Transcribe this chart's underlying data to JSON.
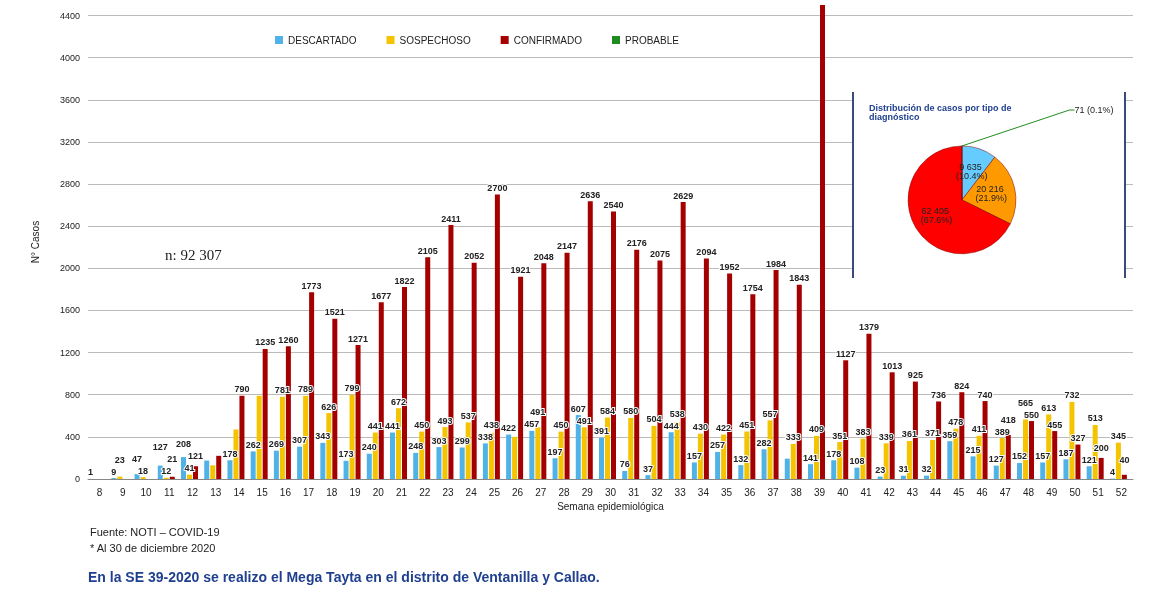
{
  "chart_data": [
    {
      "type": "bar",
      "xlabel": "Semana epidemiológica",
      "ylabel": "N° Casos",
      "categories": [
        "8",
        "9",
        "10",
        "11",
        "12",
        "13",
        "14",
        "15",
        "16",
        "17",
        "18",
        "19",
        "20",
        "21",
        "22",
        "23",
        "24",
        "25",
        "26",
        "27",
        "28",
        "29",
        "30",
        "31",
        "32",
        "33",
        "34",
        "35",
        "36",
        "37",
        "38",
        "39",
        "40",
        "41",
        "42",
        "43",
        "44",
        "45",
        "46",
        "47",
        "48",
        "49",
        "50",
        "51",
        "52"
      ],
      "series": [
        {
          "name": "DESCARTADO",
          "color": "#4fb3e8",
          "values": [
            1,
            9,
            47,
            127,
            208,
            175,
            178,
            262,
            269,
            307,
            343,
            173,
            240,
            441,
            248,
            303,
            299,
            338,
            422,
            457,
            197,
            607,
            391,
            76,
            37,
            444,
            157,
            257,
            132,
            282,
            193,
            141,
            178,
            108,
            23,
            31,
            32,
            359,
            215,
            127,
            152,
            157,
            187,
            121,
            4
          ],
          "value_labels": [
            "1",
            "9",
            "47",
            "127",
            "208",
            null,
            "178",
            "262",
            "269",
            "307",
            "343",
            "173",
            "240",
            "441",
            "248",
            "303",
            "299",
            "338",
            "422",
            "457",
            "197",
            "607",
            "391",
            "76",
            "37",
            "444",
            "157",
            "257",
            "132",
            "282",
            null,
            "141",
            "178",
            "108",
            "23",
            "31",
            "32",
            "359",
            "215",
            "127",
            "152",
            "157",
            "187",
            "121",
            "4"
          ]
        },
        {
          "name": "SOSPECHOSO",
          "color": "#f5c400",
          "values": [
            null,
            23,
            18,
            12,
            41,
            130,
            470,
            790,
            781,
            789,
            626,
            799,
            441,
            672,
            450,
            493,
            537,
            438,
            400,
            491,
            450,
            491,
            584,
            580,
            504,
            538,
            430,
            422,
            451,
            557,
            333,
            409,
            351,
            383,
            339,
            361,
            371,
            478,
            411,
            389,
            565,
            613,
            732,
            513,
            345
          ],
          "value_labels": [
            null,
            "23",
            "18",
            "12",
            "41",
            null,
            null,
            null,
            "781",
            "789",
            "626",
            "799",
            "441",
            "672",
            "450",
            "493",
            "537",
            "438",
            null,
            "491",
            "450",
            "491",
            "584",
            "580",
            "504",
            "538",
            "430",
            "422",
            "451",
            "557",
            "333",
            "409",
            "351",
            "383",
            "339",
            "361",
            "371",
            "478",
            "411",
            "389",
            "565",
            "613",
            "732",
            "513",
            "345"
          ]
        },
        {
          "name": "CONFIRMADO",
          "color": "#a50000",
          "values": [
            null,
            null,
            null,
            21,
            121,
            220,
            790,
            1235,
            1260,
            1773,
            1521,
            1271,
            1677,
            1822,
            2105,
            2411,
            2052,
            2700,
            1921,
            2048,
            2147,
            2636,
            2540,
            2176,
            2075,
            2629,
            2094,
            1952,
            1754,
            1984,
            1843,
            4500,
            1127,
            1379,
            1013,
            925,
            736,
            824,
            740,
            418,
            550,
            455,
            327,
            200,
            40
          ],
          "value_labels": [
            null,
            null,
            null,
            "21",
            "121",
            null,
            "790",
            "1235",
            "1260",
            "1773",
            "1521",
            "1271",
            "1677",
            "1822",
            "2105",
            "2411",
            "2052",
            "2700",
            "1921",
            "2048",
            "2147",
            "2636",
            "2540",
            "2176",
            "2075",
            "2629",
            "2094",
            "1952",
            "1754",
            "1984",
            "1843",
            null,
            "1127",
            "1379",
            "1013",
            "925",
            "736",
            "824",
            "740",
            "418",
            "550",
            "455",
            "327",
            "200",
            "40"
          ]
        },
        {
          "name": "PROBABLE",
          "color": "#1e8c1e",
          "values": [
            null,
            null,
            null,
            null,
            null,
            null,
            null,
            null,
            null,
            null,
            null,
            null,
            null,
            null,
            null,
            null,
            null,
            null,
            null,
            null,
            null,
            null,
            null,
            null,
            null,
            null,
            null,
            null,
            null,
            null,
            null,
            null,
            null,
            null,
            null,
            null,
            null,
            null,
            null,
            null,
            null,
            null,
            null,
            null,
            null
          ]
        }
      ],
      "ylim": [
        0,
        4500
      ],
      "yticks": [
        0,
        400,
        800,
        1200,
        1600,
        2000,
        2400,
        2800,
        3200,
        3600,
        4000,
        4400
      ],
      "grid": "y",
      "legend": "top",
      "annotations": [
        "n: 92 307",
        "Fuente: NOTI – COVID-19",
        "* Al 30 de diciembre 2020",
        "En la SE 39-2020 se realizo el Mega Tayta en el distrito de Ventanilla y Callao."
      ]
    },
    {
      "type": "pie",
      "title": "Distribución de casos por tipo de diagnóstico",
      "categories": [
        null,
        null,
        null,
        null
      ],
      "values": [
        9635,
        20216,
        62405,
        71
      ],
      "colors": [
        "#66ccff",
        "#ff9900",
        "#ff0000",
        "#1e8c1e"
      ],
      "value_labels": [
        "9 635 (10.4%)",
        "20 216 (21.9%)",
        "62 405 (67.6%)",
        "71 (0.1%)"
      ]
    }
  ]
}
